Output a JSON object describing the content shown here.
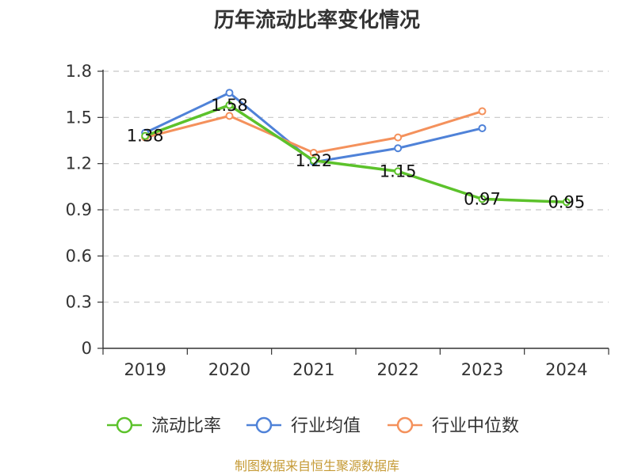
{
  "chart_data": {
    "type": "line",
    "title": "历年流动比率变化情况",
    "xlabel": "",
    "ylabel": "",
    "categories": [
      "2019",
      "2020",
      "2021",
      "2022",
      "2023",
      "2024"
    ],
    "ylim": [
      0,
      1.8
    ],
    "yticks": [
      "0",
      "0.3",
      "0.6",
      "0.9",
      "1.2",
      "1.5",
      "1.8"
    ],
    "grid": true,
    "legend_position": "bottom",
    "series": [
      {
        "name": "流动比率",
        "color": "#5cc22b",
        "values": [
          1.38,
          1.58,
          1.22,
          1.15,
          0.97,
          0.95
        ],
        "labels": [
          "1.38",
          "1.58",
          "1.22",
          "1.15",
          "0.97",
          "0.95"
        ]
      },
      {
        "name": "行业均值",
        "color": "#4f82d8",
        "values": [
          1.4,
          1.66,
          1.21,
          1.3,
          1.43,
          null
        ]
      },
      {
        "name": "行业中位数",
        "color": "#f4915c",
        "values": [
          1.37,
          1.51,
          1.27,
          1.37,
          1.54,
          null
        ]
      }
    ],
    "source": "制图数据来自恒生聚源数据库"
  }
}
